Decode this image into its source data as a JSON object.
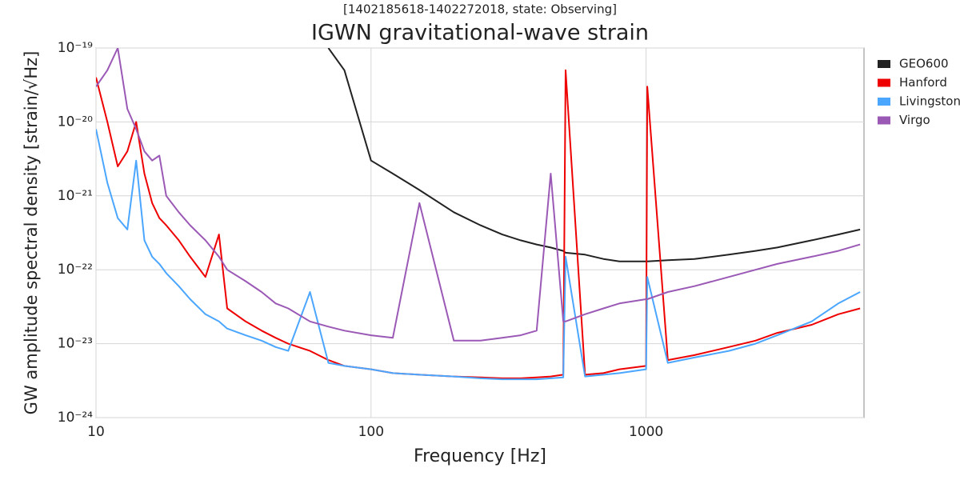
{
  "chart_data": {
    "type": "line",
    "subtitle": "[1402185618-1402272018, state: Observing]",
    "title": "IGWN gravitational-wave strain",
    "x_label": "Frequency [Hz]",
    "y_label": "GW amplitude spectral density [strain/√Hz]",
    "log_x": true,
    "log_y": true,
    "grid": true,
    "legend": "outside upper right",
    "xlim": [
      10,
      6200
    ],
    "ylim": [
      1e-24,
      1e-19
    ],
    "xticks": [
      10,
      100,
      1000
    ],
    "yticks": [
      {
        "value": 1e-24,
        "label": "10⁻²⁴"
      },
      {
        "value": 1e-23,
        "label": "10⁻²³"
      },
      {
        "value": 1e-22,
        "label": "10⁻²²"
      },
      {
        "value": 1e-21,
        "label": "10⁻²¹"
      },
      {
        "value": 1e-20,
        "label": "10⁻²⁰"
      },
      {
        "value": 1e-19,
        "label": "10⁻¹⁹"
      }
    ],
    "x": [
      10,
      11,
      12,
      13,
      14,
      15,
      16,
      17,
      18,
      20,
      22,
      25,
      28,
      30,
      35,
      40,
      45,
      50,
      60,
      70,
      80,
      100,
      120,
      150,
      200,
      250,
      300,
      350,
      400,
      450,
      500,
      510,
      600,
      700,
      800,
      1000,
      1010,
      1200,
      1500,
      2000,
      2500,
      3000,
      4000,
      5000,
      6000
    ],
    "series": [
      {
        "name": "GEO600",
        "color": "#222222",
        "values": [
          null,
          null,
          null,
          null,
          null,
          null,
          null,
          null,
          null,
          null,
          null,
          null,
          null,
          null,
          null,
          null,
          null,
          null,
          null,
          1e-19,
          5e-20,
          3e-21,
          2e-21,
          1.2e-21,
          6e-22,
          4e-22,
          3e-22,
          2.5e-22,
          2.2e-22,
          2e-22,
          1.8e-22,
          1.7e-22,
          1.6e-22,
          1.4e-22,
          1.3e-22,
          1.3e-22,
          1.3e-22,
          1.35e-22,
          1.4e-22,
          1.6e-22,
          1.8e-22,
          2e-22,
          2.5e-22,
          3e-22,
          3.5e-22
        ]
      },
      {
        "name": "Hanford",
        "color": "#ee0000",
        "values": [
          4e-20,
          1e-20,
          2.5e-21,
          4e-21,
          1e-20,
          2e-21,
          8e-22,
          5e-22,
          4e-22,
          2.5e-22,
          1.5e-22,
          8e-23,
          3e-22,
          3e-23,
          2e-23,
          1.5e-23,
          1.2e-23,
          1e-23,
          8e-24,
          6e-24,
          5e-24,
          4.5e-24,
          4e-24,
          3.8e-24,
          3.6e-24,
          3.5e-24,
          3.4e-24,
          3.4e-24,
          3.5e-24,
          3.6e-24,
          3.8e-24,
          5e-20,
          3.8e-24,
          4e-24,
          4.5e-24,
          5e-24,
          3e-20,
          6e-24,
          7e-24,
          9e-24,
          1.1e-23,
          1.4e-23,
          1.8e-23,
          2.5e-23,
          3e-23
        ]
      },
      {
        "name": "Livingston",
        "color": "#4ba6ff",
        "values": [
          8e-21,
          1.5e-21,
          5e-22,
          3.5e-22,
          3e-21,
          2.5e-22,
          1.5e-22,
          1.2e-22,
          9e-23,
          6e-23,
          4e-23,
          2.5e-23,
          2e-23,
          1.6e-23,
          1.3e-23,
          1.1e-23,
          9e-24,
          8e-24,
          5e-23,
          5.5e-24,
          5e-24,
          4.5e-24,
          4e-24,
          3.8e-24,
          3.6e-24,
          3.4e-24,
          3.3e-24,
          3.3e-24,
          3.3e-24,
          3.4e-24,
          3.5e-24,
          1.5e-22,
          3.6e-24,
          3.8e-24,
          4e-24,
          4.5e-24,
          8e-23,
          5.5e-24,
          6.5e-24,
          8e-24,
          1e-23,
          1.3e-23,
          2e-23,
          3.5e-23,
          5e-23
        ]
      },
      {
        "name": "Virgo",
        "color": "#9b59b6",
        "values": [
          3e-20,
          5e-20,
          1e-19,
          1.5e-20,
          8e-21,
          4e-21,
          3e-21,
          3.5e-21,
          1e-21,
          6e-22,
          4e-22,
          2.5e-22,
          1.5e-22,
          1e-22,
          7e-23,
          5e-23,
          3.5e-23,
          3e-23,
          2e-23,
          1.7e-23,
          1.5e-23,
          1.3e-23,
          1.2e-23,
          8e-22,
          1.1e-23,
          1.1e-23,
          1.2e-23,
          1.3e-23,
          1.5e-23,
          2e-21,
          2e-23,
          2e-23,
          2.5e-23,
          3e-23,
          3.5e-23,
          4e-23,
          4e-23,
          5e-23,
          6e-23,
          8e-23,
          1e-22,
          1.2e-22,
          1.5e-22,
          1.8e-22,
          2.2e-22
        ]
      }
    ]
  }
}
